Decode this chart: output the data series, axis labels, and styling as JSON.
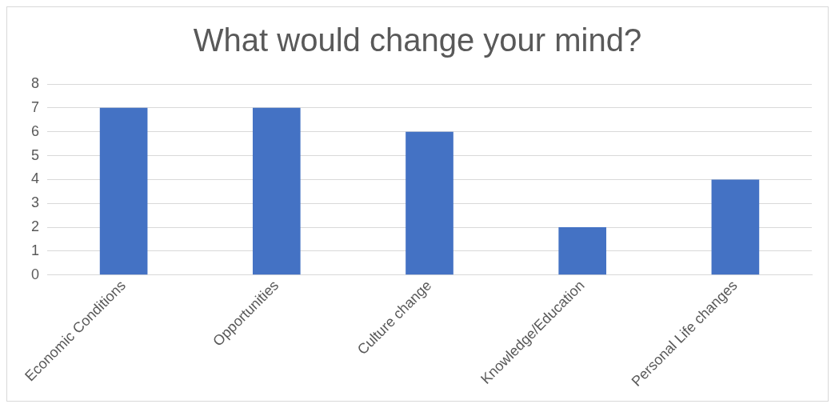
{
  "chart_data": {
    "type": "bar",
    "title": "What would change your mind?",
    "categories": [
      "Economic Conditions",
      "Opportunities",
      "Culture change",
      "Knowledge/Education",
      "Personal Life changes"
    ],
    "values": [
      7,
      7,
      6,
      2,
      4
    ],
    "color": "#4472c4",
    "ylim": [
      0,
      8
    ],
    "yticks": [
      0,
      1,
      2,
      3,
      4,
      5,
      6,
      7,
      8
    ],
    "grid": "y",
    "legend": false
  }
}
